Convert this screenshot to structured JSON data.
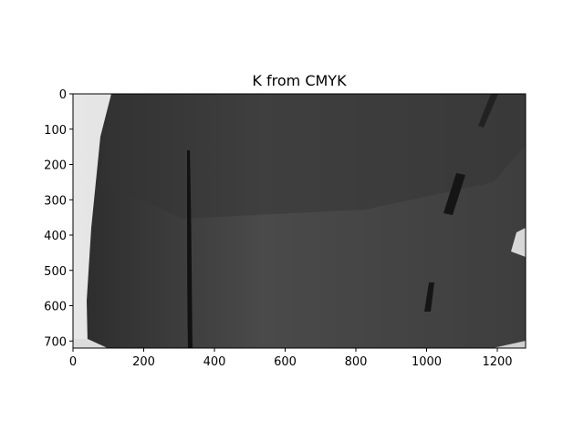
{
  "chart_data": {
    "type": "image",
    "title": "K from CMYK",
    "xlim": [
      0,
      1280
    ],
    "ylim": [
      720,
      0
    ],
    "xticks": [
      0,
      200,
      400,
      600,
      800,
      1000,
      1200
    ],
    "yticks": [
      0,
      100,
      200,
      300,
      400,
      500,
      600,
      700
    ]
  }
}
